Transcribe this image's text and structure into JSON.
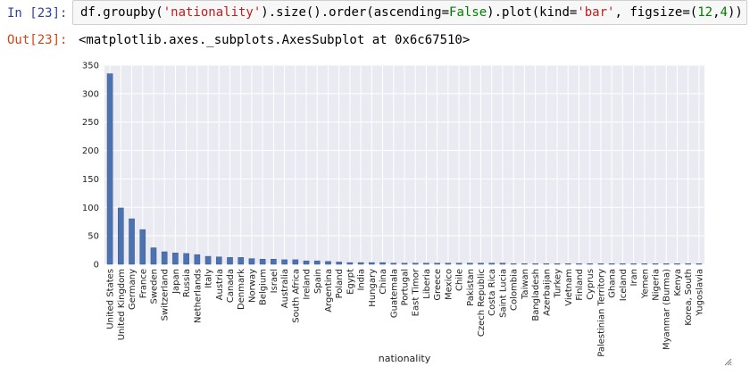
{
  "input_cell": {
    "prompt": "In [23]:",
    "code_parts": [
      {
        "t": "df.groupby(",
        "c": ""
      },
      {
        "t": "'nationality'",
        "c": "str"
      },
      {
        "t": ").size().order(ascending=",
        "c": ""
      },
      {
        "t": "False",
        "c": "kw"
      },
      {
        "t": ").plot(kind=",
        "c": ""
      },
      {
        "t": "'bar'",
        "c": "str"
      },
      {
        "t": ", figsize=(",
        "c": ""
      },
      {
        "t": "12",
        "c": "num"
      },
      {
        "t": ",",
        "c": ""
      },
      {
        "t": "4",
        "c": "num"
      },
      {
        "t": "))",
        "c": ""
      }
    ]
  },
  "output_cell": {
    "prompt": "Out[23]:",
    "text": "<matplotlib.axes._subplots.AxesSubplot at 0x6c67510>"
  },
  "chart_data": {
    "type": "bar",
    "xlabel": "nationality",
    "ylabel": "",
    "ylim": [
      0,
      350
    ],
    "yticks": [
      0,
      50,
      100,
      150,
      200,
      250,
      300,
      350
    ],
    "grid": true,
    "bar_color": "#4c72b0",
    "categories": [
      "United States",
      "United Kingdom",
      "Germany",
      "France",
      "Sweden",
      "Switzerland",
      "Japan",
      "Russia",
      "Netherlands",
      "Italy",
      "Austria",
      "Canada",
      "Denmark",
      "Norway",
      "Belgium",
      "Israel",
      "Australia",
      "South Africa",
      "Ireland",
      "Spain",
      "Argentina",
      "Poland",
      "Egypt",
      "India",
      "Hungary",
      "China",
      "Guatemala",
      "Portugal",
      "East Timor",
      "Liberia",
      "Greece",
      "Mexico",
      "Chile",
      "Pakistan",
      "Czech Republic",
      "Costa Rica",
      "Saint Lucia",
      "Colombia",
      "Taiwan",
      "Bangladesh",
      "Azerbaijan",
      "Turkey",
      "Vietnam",
      "Finland",
      "Cyprus",
      "Palestinian Territory",
      "Ghana",
      "Iceland",
      "Iran",
      "Yemen",
      "Nigeria",
      "Myanmar (Burma)",
      "Kenya",
      "Korea, South",
      "Yugoslavia"
    ],
    "values": [
      335,
      99,
      80,
      61,
      29,
      22,
      20,
      19,
      17,
      14,
      13,
      12,
      12,
      10,
      9,
      9,
      8,
      8,
      6,
      6,
      5,
      4,
      3,
      3,
      3,
      3,
      2,
      2,
      2,
      2,
      2,
      2,
      2,
      2,
      2,
      2,
      2,
      1,
      1,
      1,
      1,
      1,
      1,
      1,
      1,
      1,
      1,
      1,
      1,
      1,
      1,
      1,
      1,
      1,
      1
    ]
  }
}
